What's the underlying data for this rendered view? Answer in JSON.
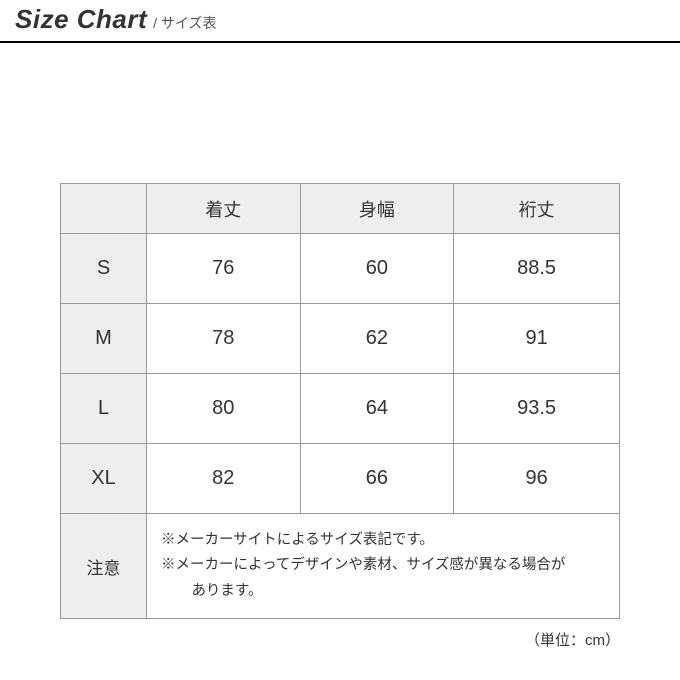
{
  "header": {
    "title_en": "Size Chart",
    "title_jp": "/ サイズ表"
  },
  "table": {
    "columns": [
      "",
      "着丈",
      "身幅",
      "裄丈"
    ],
    "rows": [
      {
        "label": "S",
        "values": [
          "76",
          "60",
          "88.5"
        ]
      },
      {
        "label": "M",
        "values": [
          "78",
          "62",
          "91"
        ]
      },
      {
        "label": "L",
        "values": [
          "80",
          "64",
          "93.5"
        ]
      },
      {
        "label": "XL",
        "values": [
          "82",
          "66",
          "96"
        ]
      }
    ],
    "note_label": "注意",
    "note_line1": "※メーカーサイトによるサイズ表記です。",
    "note_line2a": "※メーカーによってデザインや素材、サイズ感が異なる場合が",
    "note_line2b": "あります。",
    "unit": "（単位：cm）"
  }
}
